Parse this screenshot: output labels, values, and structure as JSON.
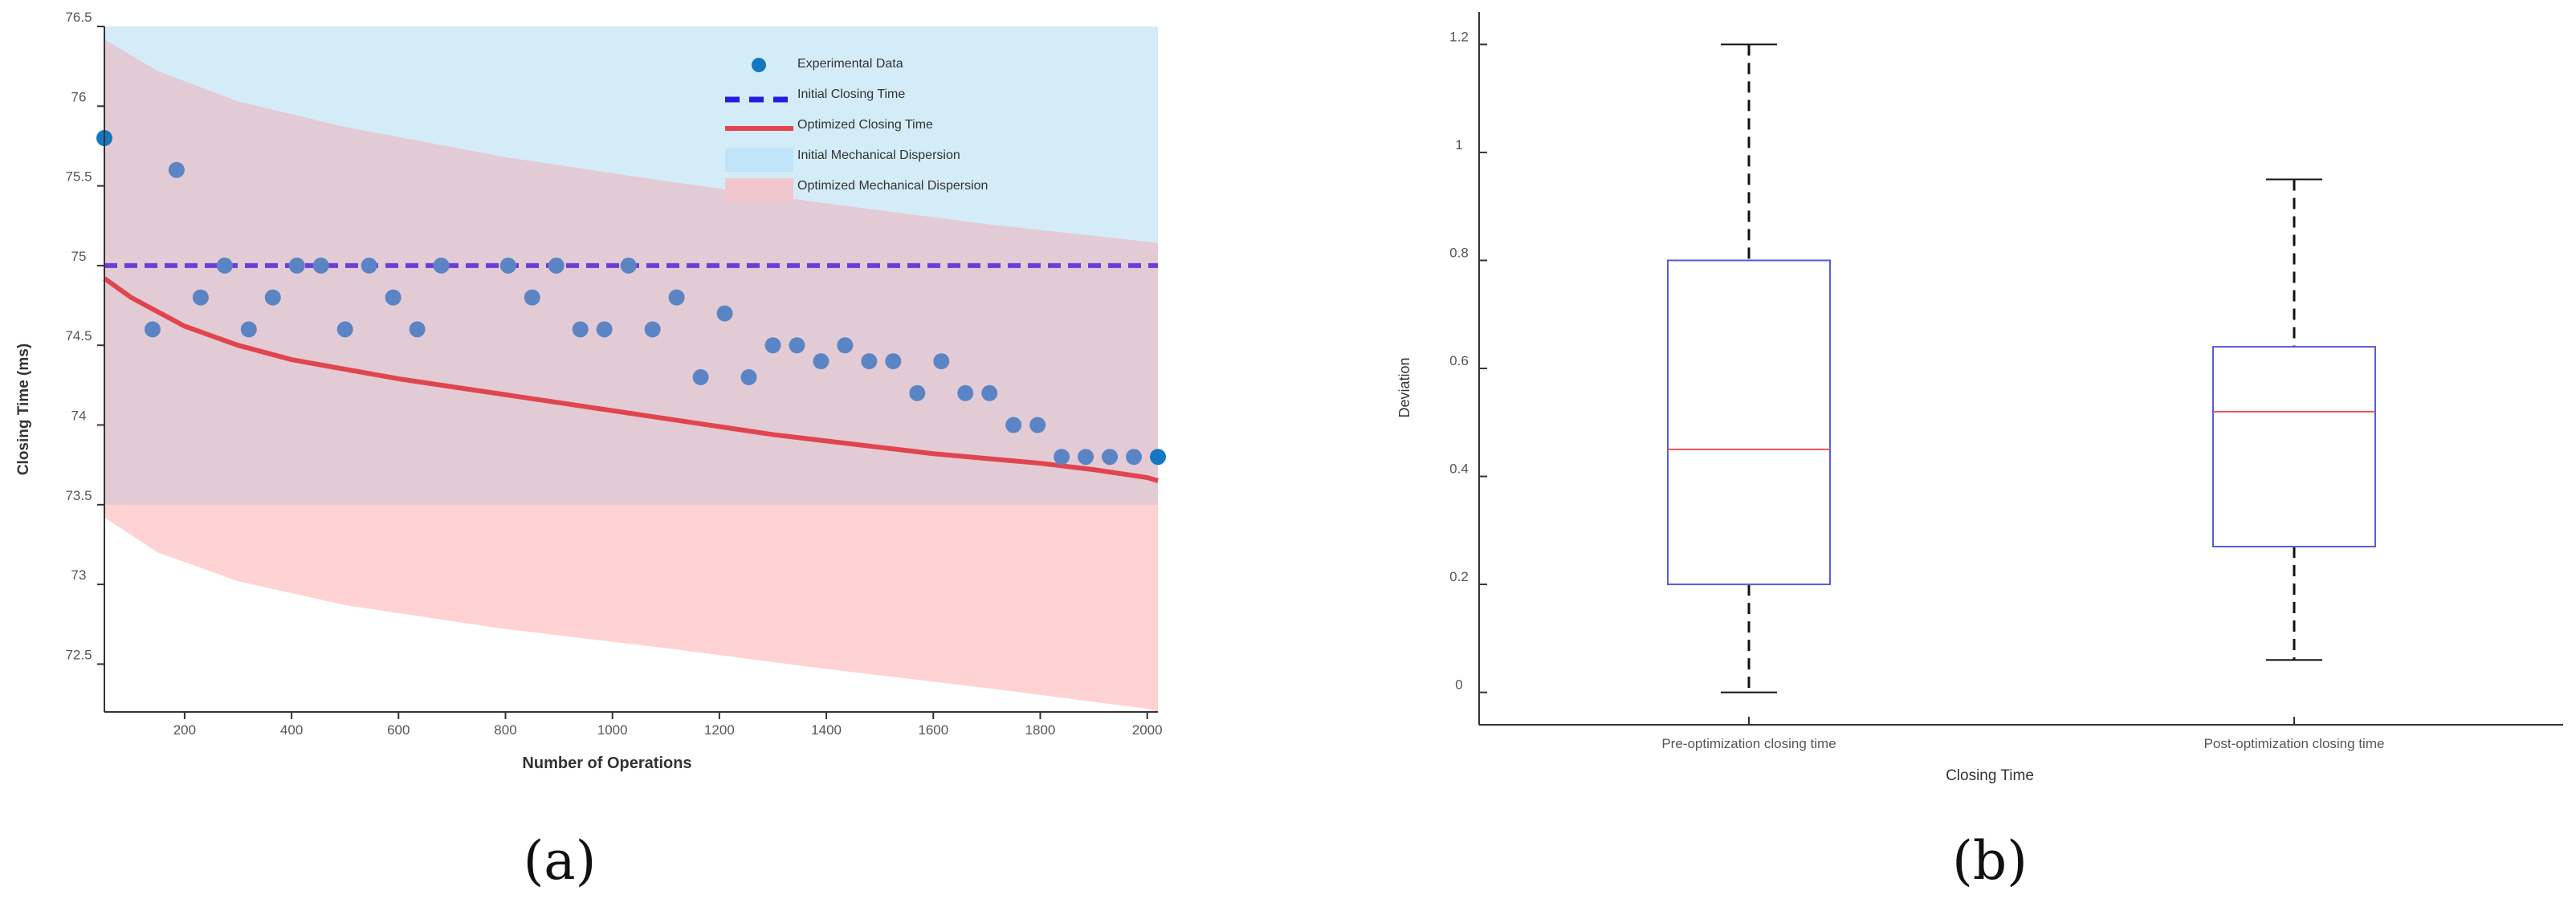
{
  "chart_data": [
    {
      "panel": "(a)",
      "type": "line",
      "title": "",
      "xlabel": "Number of Operations",
      "ylabel": "Closing Time (ms)",
      "xlim": [
        50,
        2020
      ],
      "ylim": [
        72.2,
        76.5
      ],
      "xticks": [
        200,
        400,
        600,
        800,
        1000,
        1200,
        1400,
        1600,
        1800,
        2000
      ],
      "yticks": [
        72.5,
        73,
        73.5,
        74,
        74.5,
        75,
        75.5,
        76,
        76.5
      ],
      "grid": false,
      "legend": {
        "position": "top-right",
        "entries": [
          "Experimental Data",
          "Initial Closing Time",
          "Optimized Closing Time",
          "Initial Mechanical Dispersion",
          "Optimized Mechanical Dispersion"
        ]
      },
      "colors": {
        "experimental": "#5b84c4",
        "experimental_marker": "#1577c2",
        "initial_line": "#6a3fd6",
        "initial_legend": "#1f1fe0",
        "optimized_line": "#e0454f",
        "initial_band": "#d4ecf8",
        "optimized_band": "#ffd2d4",
        "overlap_band": "#e3cbd5"
      },
      "series": {
        "experimental": {
          "name": "Experimental Data",
          "x": [
            50,
            140,
            185,
            230,
            275,
            320,
            365,
            410,
            455,
            500,
            545,
            590,
            635,
            680,
            805,
            850,
            895,
            940,
            985,
            1030,
            1075,
            1120,
            1165,
            1210,
            1255,
            1300,
            1345,
            1390,
            1435,
            1480,
            1525,
            1570,
            1615,
            1660,
            1705,
            1750,
            1795,
            1840,
            1885,
            1930,
            1975,
            2020
          ],
          "y": [
            75.8,
            74.6,
            75.6,
            74.8,
            75.0,
            74.6,
            74.8,
            75.0,
            75.0,
            74.6,
            75.0,
            74.8,
            74.6,
            75.0,
            75.0,
            74.8,
            75.0,
            74.6,
            74.6,
            75.0,
            74.6,
            74.8,
            74.3,
            74.7,
            74.3,
            74.5,
            74.5,
            74.4,
            74.5,
            74.4,
            74.4,
            74.2,
            74.4,
            74.2,
            74.2,
            74.0,
            74.0,
            73.8,
            73.8,
            73.8,
            73.8,
            73.8
          ]
        },
        "initial_closing_time": {
          "name": "Initial Closing Time",
          "x": [
            50,
            2020
          ],
          "y": [
            75.0,
            75.0
          ]
        },
        "optimized_closing_time": {
          "name": "Optimized Closing Time",
          "x": [
            50,
            100,
            200,
            300,
            400,
            500,
            600,
            700,
            800,
            900,
            1000,
            1100,
            1200,
            1300,
            1400,
            1500,
            1600,
            1700,
            1800,
            1900,
            2000,
            2020
          ],
          "y": [
            74.92,
            74.8,
            74.62,
            74.5,
            74.41,
            74.35,
            74.29,
            74.24,
            74.19,
            74.14,
            74.09,
            74.04,
            73.99,
            73.94,
            73.9,
            73.86,
            73.82,
            73.79,
            73.76,
            73.72,
            73.67,
            73.65
          ]
        },
        "initial_mechanical_dispersion": {
          "name": "Initial Mechanical Dispersion",
          "x": [
            50,
            2020
          ],
          "lower": [
            73.5,
            73.5
          ],
          "upper": [
            76.5,
            76.5
          ]
        },
        "optimized_mechanical_dispersion": {
          "name": "Optimized Mechanical Dispersion",
          "x": [
            50,
            150,
            300,
            500,
            800,
            1100,
            1400,
            1700,
            2000,
            2020
          ],
          "lower": [
            73.42,
            73.2,
            73.02,
            72.87,
            72.72,
            72.6,
            72.47,
            72.35,
            72.22,
            72.2
          ],
          "upper": [
            76.42,
            76.22,
            76.03,
            75.87,
            75.68,
            75.53,
            75.39,
            75.26,
            75.15,
            75.14
          ]
        }
      }
    },
    {
      "panel": "(b)",
      "type": "box",
      "title": "",
      "xlabel": "Closing Time",
      "ylabel": "Deviation",
      "ylim": [
        -0.06,
        1.26
      ],
      "yticks": [
        0,
        0.2,
        0.4,
        0.6,
        0.8,
        1,
        1.2
      ],
      "grid": false,
      "colors": {
        "box": "#5a5ad8",
        "median": "#e05555",
        "whisker": "#111111"
      },
      "categories": [
        "Pre-optimization closing time",
        "Post-optimization closing time"
      ],
      "boxes": [
        {
          "label": "Pre-optimization closing time",
          "min": 0.0,
          "q1": 0.2,
          "median": 0.45,
          "q3": 0.8,
          "max": 1.2
        },
        {
          "label": "Post-optimization closing time",
          "min": 0.06,
          "q1": 0.27,
          "median": 0.52,
          "q3": 0.64,
          "max": 0.95
        }
      ]
    }
  ],
  "panel_labels": [
    "(a)",
    "(b)"
  ]
}
